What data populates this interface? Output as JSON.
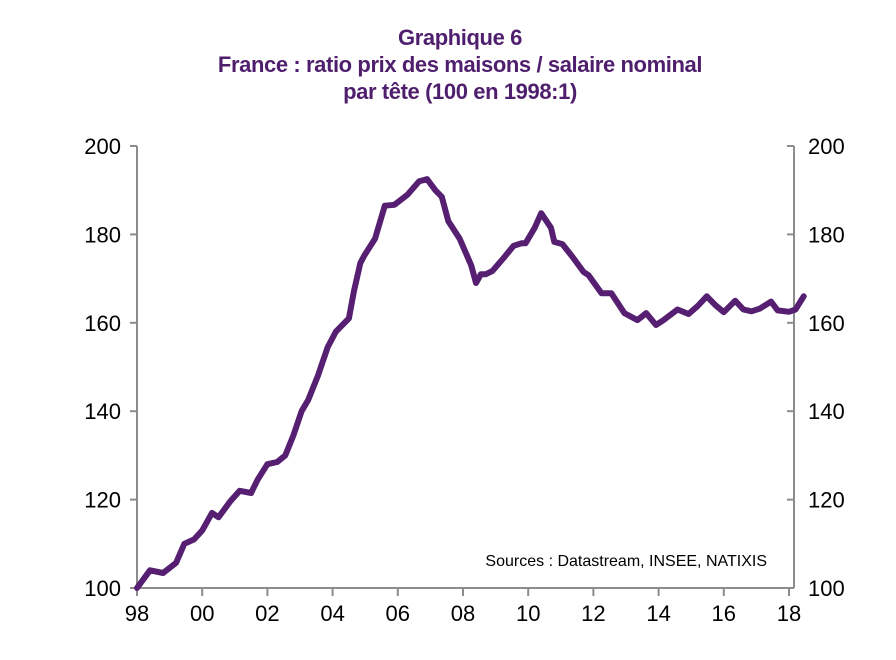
{
  "chart_data": {
    "type": "line",
    "title": "Graphique 6",
    "subtitle_lines": [
      "France : ratio prix des maisons / salaire nominal",
      "par tête (100 en 1998:1)"
    ],
    "xlabel": "",
    "ylabel": "",
    "x_tick_labels": [
      "98",
      "00",
      "02",
      "04",
      "06",
      "08",
      "10",
      "12",
      "14",
      "16",
      "18"
    ],
    "x_tick_values": [
      1998,
      2000,
      2002,
      2004,
      2006,
      2008,
      2010,
      2012,
      2014,
      2016,
      2018
    ],
    "xlim": [
      1998,
      2020
    ],
    "ylim": [
      100,
      200
    ],
    "y_ticks": [
      100,
      120,
      140,
      160,
      180,
      200
    ],
    "y_tick_labels_left": [
      "100",
      "120",
      "140",
      "160",
      "180",
      "200"
    ],
    "y_tick_labels_right": [
      "100",
      "120",
      "140",
      "160",
      "180",
      "200"
    ],
    "grid": false,
    "legend": "none",
    "annotation": "Sources  : Datastream,  INSEE, NATIXIS",
    "series": [
      {
        "name": "Ratio prix des maisons / salaire nominal par tête",
        "color": "#561f72",
        "x": [
          1998.0,
          1998.4,
          1998.8,
          1999.2,
          1999.45,
          1999.75,
          2000.0,
          2000.3,
          2000.5,
          2000.85,
          2001.15,
          2001.5,
          2001.7,
          2002.0,
          2002.3,
          2002.55,
          2002.8,
          2003.05,
          2003.25,
          2003.55,
          2003.85,
          2004.1,
          2004.5,
          2004.65,
          2004.85,
          2004.98,
          2005.3,
          2005.6,
          2005.9,
          2006.3,
          2006.65,
          2006.9,
          2007.15,
          2007.35,
          2007.55,
          2007.9,
          2008.25,
          2008.4,
          2008.55,
          2008.7,
          2008.9,
          2009.25,
          2009.55,
          2009.8,
          2009.92,
          2010.2,
          2010.4,
          2010.7,
          2010.8,
          2011.05,
          2011.35,
          2011.7,
          2011.85,
          2012.25,
          2012.55,
          2012.95,
          2013.35,
          2013.62,
          2013.92,
          2014.15,
          2014.58,
          2014.92,
          2015.2,
          2015.48,
          2015.74,
          2016.0,
          2016.35,
          2016.6,
          2016.85,
          2017.1,
          2017.45,
          2017.65,
          2018.0,
          2018.2,
          2018.45
        ],
        "values": [
          100.0,
          104.0,
          103.4,
          105.7,
          110.0,
          111.0,
          113.0,
          117.0,
          116.0,
          119.5,
          122.0,
          121.5,
          124.5,
          128.0,
          128.5,
          130.0,
          134.6,
          140.0,
          142.5,
          148.0,
          154.5,
          158.0,
          161.0,
          167.0,
          173.5,
          175.3,
          179.0,
          186.5,
          186.7,
          189.0,
          192.0,
          192.5,
          190.0,
          188.5,
          183.0,
          179.0,
          173.0,
          169.0,
          171.0,
          171.0,
          171.7,
          174.7,
          177.4,
          178.0,
          178.0,
          181.5,
          184.8,
          181.5,
          178.3,
          177.8,
          175.0,
          171.5,
          170.8,
          166.7,
          166.7,
          162.2,
          160.6,
          162.2,
          159.5,
          160.6,
          163.0,
          162.0,
          163.8,
          166.0,
          164.0,
          162.4,
          165.0,
          163.0,
          162.6,
          163.2,
          164.8,
          162.8,
          162.5,
          163.0,
          166.0
        ]
      }
    ]
  }
}
